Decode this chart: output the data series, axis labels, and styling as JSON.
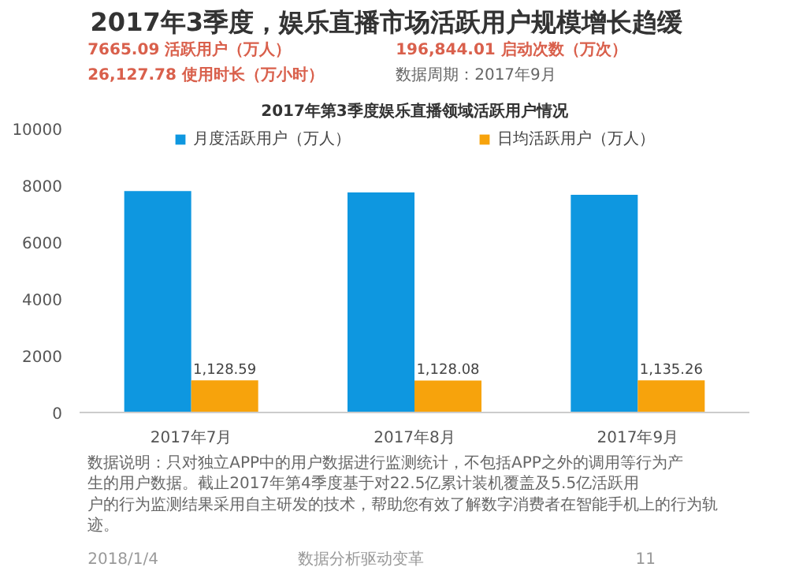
{
  "chart_data": {
    "type": "bar",
    "title": "2017年3季度，娱乐直播市场活跃用户规模增长趋缓",
    "subtitle": "2017年第3季度娱乐直播领域活跃用户情况",
    "categories": [
      "2017年7月",
      "2017年8月",
      "2017年9月"
    ],
    "series": [
      {
        "name": "月度活跃用户（万人）",
        "color": "#0e97e0",
        "values": [
          7800,
          7750,
          7670
        ]
      },
      {
        "name": "日均活跃用户（万人）",
        "color": "#f7a30c",
        "values": [
          1128.59,
          1128.08,
          1135.26
        ],
        "value_labels": [
          "1,128.59",
          "1,128.08",
          "1,135.26"
        ]
      }
    ],
    "ylim": [
      0,
      10000
    ],
    "yticks": [
      0,
      2000,
      4000,
      6000,
      8000,
      10000
    ],
    "grid": false,
    "legend": "top",
    "annotations": [
      "7665.09 活跃用户（万人）",
      "196,844.01 启动次数（万次）",
      "26,127.78 使用时长（万小时）",
      "数据周期：2017年9月",
      "数据说明：只对独立APP中的用户数据进行监测统计，不包括APP之外的调用等行为产生的用户数据。截止2017年第4季度基于对22.5亿累计装机覆盖及5.5亿活跃用户的行为监测结果采用自主研发的技术，帮助您有效了解数字消费者在智能手机上的行为轨迹。",
      "2018/1/4",
      "数据分析驱动变革",
      "11"
    ]
  }
}
